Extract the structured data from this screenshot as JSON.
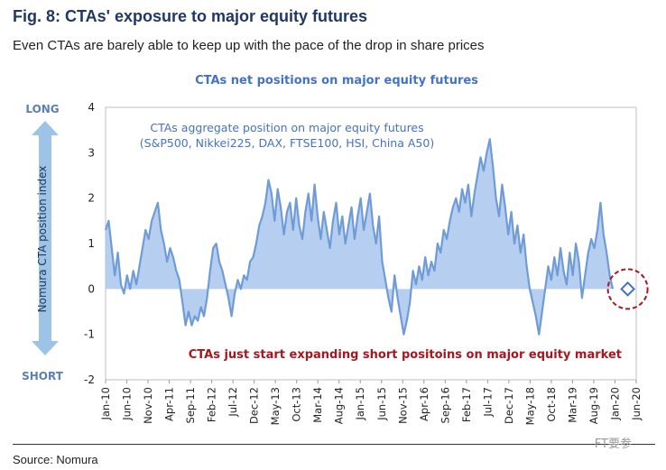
{
  "figure": {
    "title": "Fig. 8: CTAs' exposure to major equity futures",
    "subtitle": "Even CTAs are barely able to keep up with the pace of the drop in share prices",
    "source": "Source: Nomura",
    "watermark": "FT要参"
  },
  "chart_data": {
    "type": "area",
    "title": "CTAs net positions on major equity futures",
    "ylabel": "Nomura CTA position index",
    "ylim": [
      -2,
      4
    ],
    "yticks": [
      "4",
      "3",
      "2",
      "1",
      "0",
      "-1",
      "-2"
    ],
    "long_label": "LONG",
    "short_label": "SHORT",
    "series_annotation_line1": "CTAs aggregate position on major equity futures",
    "series_annotation_line2": "(S&P500, Nikkei225, DAX, FTSE100, HSI, China A50)",
    "callout": "CTAs just start expanding short positoins on major equity market",
    "grid": false,
    "legend": "none",
    "colors": {
      "line": "#6f9bd6",
      "fill": "#a9c6ec",
      "title": "#4472c4",
      "callout": "#a8161e"
    },
    "x_labels": [
      "Jan-10",
      "Jun-10",
      "Nov-10",
      "Apr-11",
      "Sep-11",
      "Feb-12",
      "Jul-12",
      "Dec-12",
      "May-13",
      "Oct-13",
      "Mar-14",
      "Aug-14",
      "Jan-15",
      "Jun-15",
      "Nov-15",
      "Apr-16",
      "Sep-16",
      "Feb-17",
      "Jul-17",
      "Dec-17",
      "May-18",
      "Oct-18",
      "Mar-19",
      "Aug-19",
      "Jan-20",
      "Jun-20"
    ],
    "x_start": "2010-01",
    "x_end": "2020-06",
    "values": [
      1.3,
      1.5,
      0.9,
      0.3,
      0.8,
      0.1,
      -0.1,
      0.3,
      0.0,
      0.4,
      0.1,
      0.5,
      0.9,
      1.3,
      1.1,
      1.5,
      1.7,
      1.9,
      1.3,
      1.0,
      0.6,
      0.9,
      0.7,
      0.4,
      0.2,
      -0.3,
      -0.8,
      -0.5,
      -0.8,
      -0.6,
      -0.7,
      -0.4,
      -0.6,
      -0.2,
      0.4,
      0.9,
      1.0,
      0.6,
      0.4,
      0.1,
      -0.2,
      -0.6,
      -0.1,
      0.2,
      0.0,
      0.3,
      0.2,
      0.6,
      0.7,
      1.0,
      1.4,
      1.6,
      1.9,
      2.4,
      2.1,
      1.5,
      2.2,
      1.8,
      1.2,
      1.7,
      1.9,
      1.3,
      2.0,
      1.4,
      1.1,
      1.7,
      2.1,
      1.5,
      2.3,
      1.6,
      1.1,
      1.7,
      1.3,
      0.9,
      1.5,
      1.9,
      1.2,
      1.6,
      1.0,
      1.4,
      1.8,
      1.1,
      1.6,
      2.0,
      1.3,
      1.7,
      2.1,
      1.4,
      1.0,
      1.6,
      0.6,
      0.2,
      -0.2,
      -0.5,
      0.3,
      -0.2,
      -0.6,
      -1.0,
      -0.7,
      -0.3,
      0.4,
      0.1,
      0.5,
      0.2,
      0.7,
      0.3,
      0.6,
      0.4,
      1.0,
      0.8,
      1.3,
      1.1,
      1.5,
      1.8,
      2.0,
      1.7,
      2.2,
      1.9,
      2.3,
      1.6,
      2.1,
      2.5,
      2.9,
      2.6,
      3.0,
      3.3,
      2.7,
      2.0,
      1.6,
      2.3,
      1.8,
      1.2,
      1.7,
      1.0,
      1.4,
      0.8,
      1.2,
      0.5,
      0.0,
      -0.3,
      -0.6,
      -1.0,
      -0.5,
      0.0,
      0.5,
      0.2,
      0.7,
      0.3,
      0.9,
      0.4,
      0.1,
      0.8,
      0.3,
      1.0,
      0.6,
      -0.2,
      0.3,
      0.8,
      1.1,
      0.9,
      1.3,
      1.9,
      1.2,
      0.8,
      0.3,
      0.0
    ],
    "marker": {
      "date": "2020-04",
      "value": 0.0
    }
  }
}
